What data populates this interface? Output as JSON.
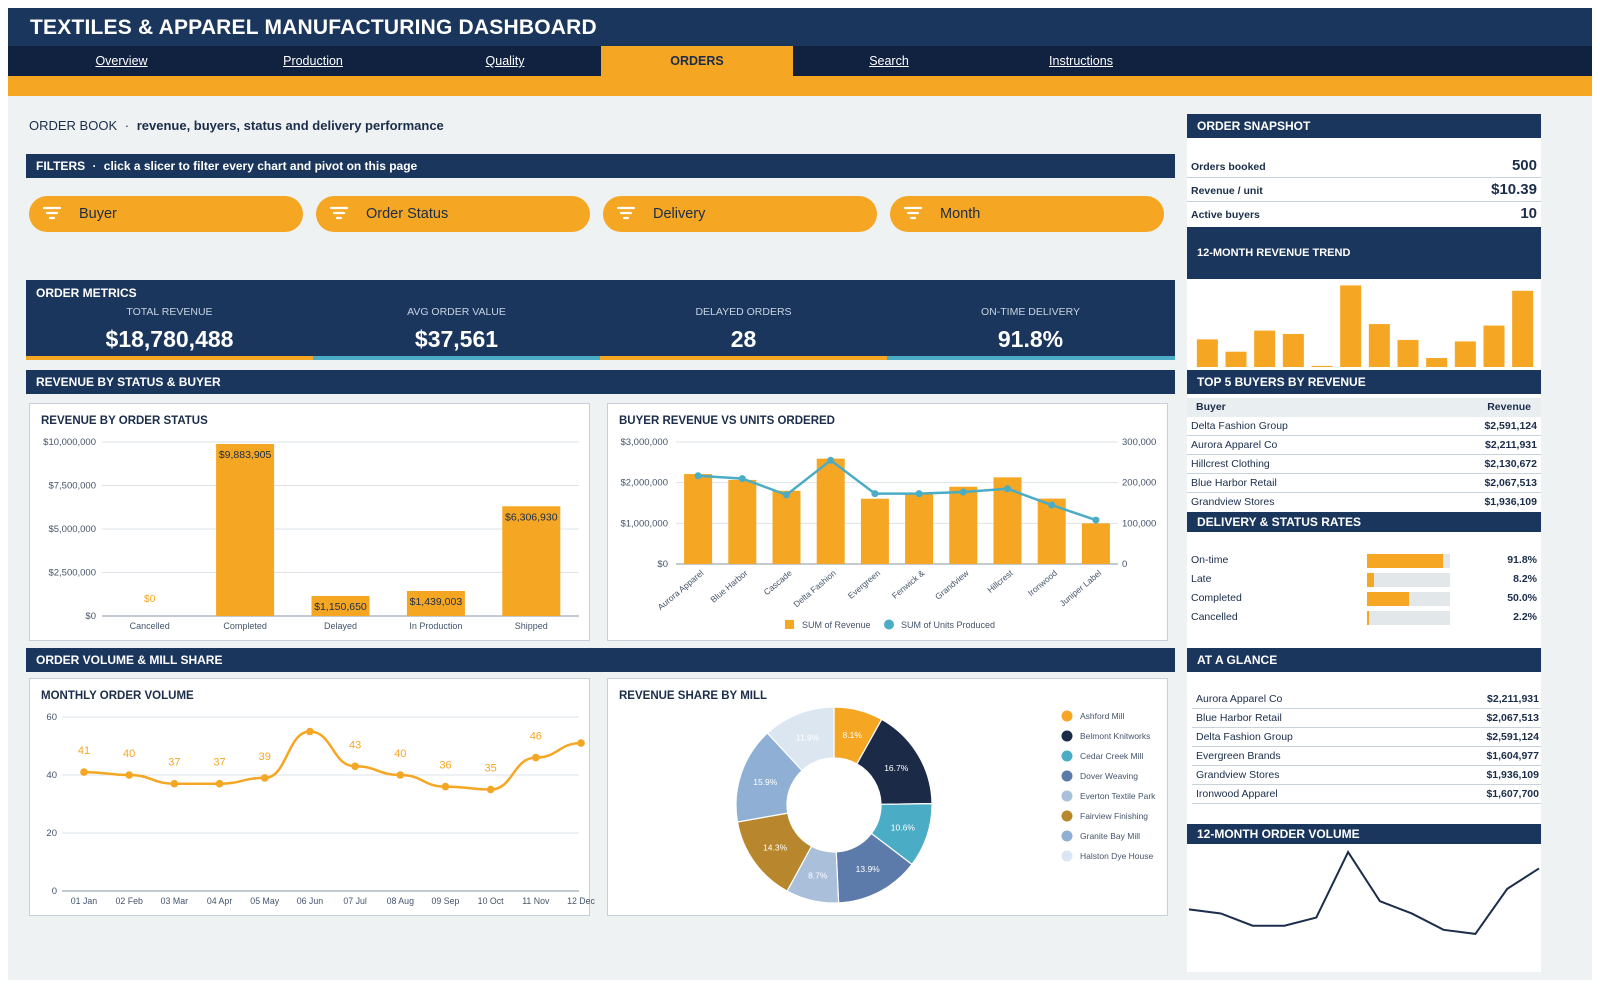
{
  "app": {
    "title": "TEXTILES & APPAREL MANUFACTURING DASHBOARD"
  },
  "nav": {
    "tabs": [
      "Overview",
      "Production",
      "Quality",
      "ORDERS",
      "Search",
      "Instructions"
    ],
    "active": "ORDERS"
  },
  "page": {
    "heading": "ORDER BOOK",
    "separator": "·",
    "subheading": "revenue, buyers, status and delivery performance"
  },
  "filters": {
    "bar_title": "FILTERS",
    "bar_note": "click a slicer to filter every chart and pivot on this page",
    "slicers": [
      "Buyer",
      "Order Status",
      "Delivery",
      "Month"
    ]
  },
  "metrics": {
    "bar_title": "ORDER METRICS",
    "items": [
      {
        "label": "TOTAL REVENUE",
        "value": "$18,780,488"
      },
      {
        "label": "AVG ORDER VALUE",
        "value": "$37,561"
      },
      {
        "label": "DELAYED ORDERS",
        "value": "28"
      },
      {
        "label": "ON-TIME DELIVERY",
        "value": "91.8%"
      }
    ]
  },
  "sections": {
    "revenue": "REVENUE BY STATUS & BUYER",
    "volume": "ORDER VOLUME & MILL SHARE"
  },
  "sidebar": {
    "snapshot": {
      "title": "ORDER SNAPSHOT",
      "rows": [
        {
          "label": "Orders booked",
          "value": "500"
        },
        {
          "label": "Revenue / unit",
          "value": "$10.39"
        },
        {
          "label": "Active buyers",
          "value": "10"
        }
      ]
    },
    "trend_title": "12-MONTH REVENUE TREND",
    "top_buyers": {
      "title": "TOP 5 BUYERS BY REVENUE",
      "col_buyer": "Buyer",
      "col_revenue": "Revenue",
      "rows": [
        {
          "name": "Delta Fashion Group",
          "revenue": "$2,591,124"
        },
        {
          "name": "Aurora Apparel Co",
          "revenue": "$2,211,931"
        },
        {
          "name": "Hillcrest Clothing",
          "revenue": "$2,130,672"
        },
        {
          "name": "Blue Harbor Retail",
          "revenue": "$2,067,513"
        },
        {
          "name": "Grandview Stores",
          "revenue": "$1,936,109"
        }
      ]
    },
    "rates": {
      "title": "DELIVERY & STATUS RATES",
      "rows": [
        {
          "name": "On-time",
          "pct": 91.8,
          "label": "91.8%"
        },
        {
          "name": "Late",
          "pct": 8.2,
          "label": "8.2%"
        },
        {
          "name": "Completed",
          "pct": 50.0,
          "label": "50.0%"
        },
        {
          "name": "Cancelled",
          "pct": 2.2,
          "label": "2.2%"
        }
      ]
    },
    "glance": {
      "title": "AT A GLANCE",
      "rows": [
        {
          "name": "Aurora Apparel Co",
          "value": "$2,211,931"
        },
        {
          "name": "Blue Harbor Retail",
          "value": "$2,067,513"
        },
        {
          "name": "Delta Fashion Group",
          "value": "$2,591,124"
        },
        {
          "name": "Evergreen Brands",
          "value": "$1,604,977"
        },
        {
          "name": "Grandview Stores",
          "value": "$1,936,109"
        },
        {
          "name": "Ironwood Apparel",
          "value": "$1,607,700"
        }
      ]
    },
    "volume_title": "12-MONTH ORDER VOLUME"
  },
  "colors": {
    "navy": "#1b365d",
    "dark_navy": "#10223f",
    "orange": "#f5a623",
    "teal": "#4aacc5",
    "page_bg": "#eef2f2"
  },
  "chart_data": [
    {
      "id": "status",
      "type": "bar",
      "title": "REVENUE BY ORDER STATUS",
      "categories": [
        "Cancelled",
        "Completed",
        "Delayed",
        "In Production",
        "Shipped"
      ],
      "values": [
        0,
        9883905,
        1150650,
        1439003,
        6306930
      ],
      "value_labels": [
        "$0",
        "$9,883,905",
        "$1,150,650",
        "$1,439,003",
        "$6,306,930"
      ],
      "ylim": [
        0,
        10000000
      ],
      "yticks": [
        0,
        2500000,
        5000000,
        7500000,
        10000000
      ],
      "ytick_labels": [
        "$0",
        "$2,500,000",
        "$5,000,000",
        "$7,500,000",
        "$10,000,000"
      ],
      "grid": true
    },
    {
      "id": "buyers",
      "type": "bar",
      "title": "BUYER REVENUE VS UNITS ORDERED",
      "categories": [
        "Aurora Apparel",
        "Blue Harbor",
        "Cascade",
        "Delta Fashion",
        "Evergreen",
        "Fenwick &",
        "Grandview",
        "Hillcrest",
        "Ironwood",
        "Juniper Label"
      ],
      "series": [
        {
          "name": "SUM of Revenue",
          "kind": "bar",
          "axis": "left",
          "color": "#f5a623",
          "values": [
            2211931,
            2067513,
            1800000,
            2591124,
            1604977,
            1750000,
            1900000,
            2130672,
            1607700,
            1000000
          ]
        },
        {
          "name": "SUM of Units Produced",
          "kind": "line",
          "axis": "right",
          "color": "#4aacc5",
          "values": [
            217000,
            210000,
            170000,
            255000,
            173000,
            173000,
            177000,
            185000,
            145000,
            108000
          ]
        }
      ],
      "ylim_left": [
        0,
        3000000
      ],
      "yticks_left_labels": [
        "$0",
        "$1,000,000",
        "$2,000,000",
        "$3,000,000"
      ],
      "ylim_right": [
        0,
        300000
      ],
      "yticks_right_labels": [
        "0",
        "100,000",
        "200,000",
        "300,000"
      ],
      "legend": "bottom",
      "grid": true
    },
    {
      "id": "monthly",
      "type": "line",
      "title": "MONTHLY ORDER VOLUME",
      "categories": [
        "01 Jan",
        "02 Feb",
        "03 Mar",
        "04 Apr",
        "05 May",
        "06 Jun",
        "07 Jul",
        "08 Aug",
        "09 Sep",
        "10 Oct",
        "11 Nov",
        "12 Dec"
      ],
      "values": [
        41,
        40,
        37,
        37,
        39,
        55,
        43,
        40,
        36,
        35,
        46,
        51
      ],
      "labels": [
        "41",
        "40",
        "37",
        "37",
        "39",
        "",
        "43",
        "40",
        "36",
        "35",
        "46",
        ""
      ],
      "ylim": [
        0,
        60
      ],
      "yticks": [
        0,
        20,
        40,
        60
      ],
      "grid": true
    },
    {
      "id": "mills",
      "type": "pie",
      "title": "REVENUE SHARE BY MILL",
      "donut": true,
      "slices": [
        {
          "name": "Ashford Mill",
          "value": 8.1,
          "label": "8.1%",
          "color": "#f5a623"
        },
        {
          "name": "Belmont Knitworks",
          "value": 16.7,
          "label": "16.7%",
          "color": "#1b2a47"
        },
        {
          "name": "Cedar Creek Mill",
          "value": 10.6,
          "label": "10.6%",
          "color": "#4aacc5"
        },
        {
          "name": "Dover Weaving",
          "value": 13.9,
          "label": "13.9%",
          "color": "#5c7aaa"
        },
        {
          "name": "Everton Textile Park",
          "value": 8.7,
          "label": "8.7%",
          "color": "#a9bfda"
        },
        {
          "name": "Fairview Finishing",
          "value": 14.3,
          "label": "14.3%",
          "color": "#b8862c"
        },
        {
          "name": "Granite Bay Mill",
          "value": 15.9,
          "label": "15.9%",
          "color": "#8fb0d4"
        },
        {
          "name": "Halston Dye House",
          "value": 11.9,
          "label": "11.9%",
          "color": "#dce6f0"
        }
      ],
      "legend": "right"
    },
    {
      "id": "trend",
      "type": "bar",
      "title": "12-MONTH REVENUE TREND",
      "values": [
        1480000,
        820000,
        1950000,
        1770000,
        60000,
        4370000,
        2300000,
        1450000,
        480000,
        1370000,
        2220000,
        4080000
      ],
      "ylim": [
        0,
        4500000
      ]
    },
    {
      "id": "volume",
      "type": "line",
      "title": "12-MONTH ORDER VOLUME",
      "values": [
        41,
        40,
        37,
        37,
        39,
        55,
        43,
        40,
        36,
        35,
        46,
        51
      ],
      "ylim": [
        34,
        56
      ]
    }
  ]
}
